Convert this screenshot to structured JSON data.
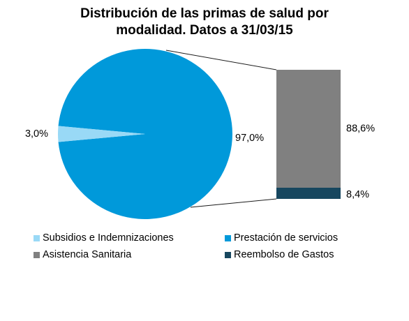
{
  "chart_data": {
    "type": "pie",
    "title_lines": [
      "Distribución  de las primas de salud por",
      "modalidad. Datos a 31/03/15"
    ],
    "pie": {
      "slices": [
        {
          "name": "Subsidios e Indemnizaciones",
          "value": 3.0,
          "label": "3,0%",
          "color": "#99d9f6"
        },
        {
          "name": "Prestación de servicios",
          "value": 97.0,
          "label": "97,0%",
          "color": "#0099da"
        }
      ]
    },
    "breakdown_bar": {
      "of": "Prestación de servicios",
      "segments": [
        {
          "name": "Asistencia Sanitaria",
          "value": 88.6,
          "label": "88,6%",
          "color": "#808080"
        },
        {
          "name": "Reembolso de Gastos",
          "value": 8.4,
          "label": "8,4%",
          "color": "#17475f"
        }
      ]
    },
    "legend": [
      {
        "label": "Subsidios e Indemnizaciones",
        "color": "#99d9f6"
      },
      {
        "label": "Prestación de servicios",
        "color": "#0099da"
      },
      {
        "label": "Asistencia Sanitaria",
        "color": "#808080"
      },
      {
        "label": "Reembolso de Gastos",
        "color": "#17475f"
      }
    ],
    "legend_position": "bottom"
  }
}
